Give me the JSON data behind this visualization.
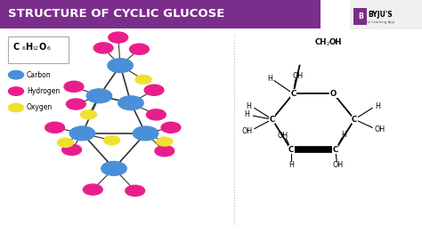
{
  "title": "STRUCTURE OF CYCLIC GLUCOSE",
  "title_bg": "#7B2D8B",
  "title_fg": "#FFFFFF",
  "bg_color": "#FFFFFF",
  "legend_items": [
    {
      "label": "Carbon",
      "color": "#4A90D9"
    },
    {
      "label": "Hydrogen",
      "color": "#E91E8C"
    },
    {
      "label": "Oxygen",
      "color": "#F0E030"
    }
  ],
  "carbon_color": "#4A90D9",
  "hydrogen_color": "#E91E8C",
  "oxygen_color": "#F0E030",
  "bond_color": "#333333",
  "byju_bg": "#7B2D8B"
}
